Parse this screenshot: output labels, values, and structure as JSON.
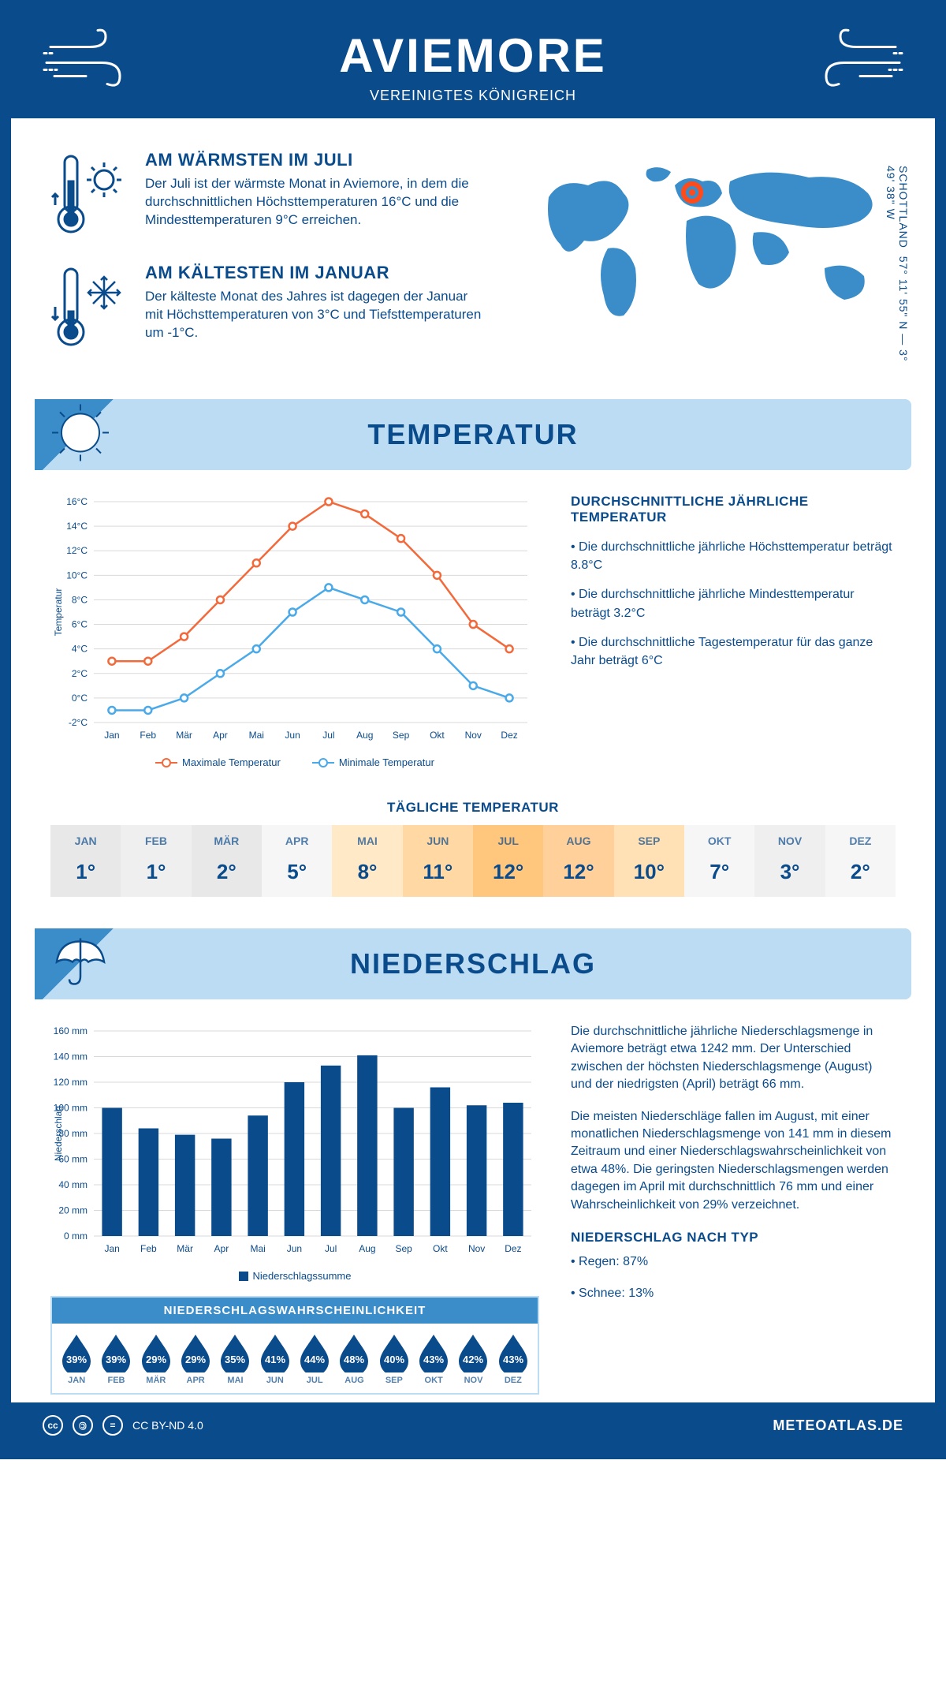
{
  "colors": {
    "primary": "#0a4b8c",
    "light_blue": "#bcdcf4",
    "mid_blue": "#3a8dc9",
    "orange_line": "#f26a3b",
    "blue_line": "#4aa9e8",
    "grid": "#d9d9d9"
  },
  "header": {
    "title": "AVIEMORE",
    "subtitle": "VEREINIGTES KÖNIGREICH"
  },
  "intro": {
    "warm": {
      "title": "AM WÄRMSTEN IM JULI",
      "text": "Der Juli ist der wärmste Monat in Aviemore, in dem die durchschnittlichen Höchsttemperaturen 16°C und die Mindesttemperaturen 9°C erreichen."
    },
    "cold": {
      "title": "AM KÄLTESTEN IM JANUAR",
      "text": "Der kälteste Monat des Jahres ist dagegen der Januar mit Höchsttemperaturen von 3°C und Tiefsttemperaturen um -1°C."
    },
    "coords": "57° 11' 55\" N — 3° 49' 38\" W",
    "region": "SCHOTTLAND"
  },
  "sections": {
    "temperature": "TEMPERATUR",
    "precipitation": "NIEDERSCHLAG"
  },
  "months": [
    "Jan",
    "Feb",
    "Mär",
    "Apr",
    "Mai",
    "Jun",
    "Jul",
    "Aug",
    "Sep",
    "Okt",
    "Nov",
    "Dez"
  ],
  "temp_chart": {
    "ylabel": "Temperatur",
    "ymin": -2,
    "ymax": 16,
    "ystep": 2,
    "max_series": [
      3,
      3,
      5,
      8,
      11,
      14,
      16,
      15,
      13,
      10,
      6,
      4
    ],
    "min_series": [
      -1,
      -1,
      0,
      2,
      4,
      7,
      9,
      8,
      7,
      4,
      1,
      0
    ],
    "legend_max": "Maximale Temperatur",
    "legend_min": "Minimale Temperatur",
    "title_fontsize": 13,
    "label_fontsize": 12,
    "background_color": "#ffffff",
    "grid_color": "#d9d9d9"
  },
  "temp_stats": {
    "title": "DURCHSCHNITTLICHE JÄHRLICHE TEMPERATUR",
    "lines": [
      "• Die durchschnittliche jährliche Höchsttemperatur beträgt 8.8°C",
      "• Die durchschnittliche jährliche Mindesttemperatur beträgt 3.2°C",
      "• Die durchschnittliche Tagestemperatur für das ganze Jahr beträgt 6°C"
    ]
  },
  "daily_temp": {
    "title": "TÄGLICHE TEMPERATUR",
    "months_short": [
      "JAN",
      "FEB",
      "MÄR",
      "APR",
      "MAI",
      "JUN",
      "JUL",
      "AUG",
      "SEP",
      "OKT",
      "NOV",
      "DEZ"
    ],
    "values": [
      "1°",
      "1°",
      "2°",
      "5°",
      "8°",
      "11°",
      "12°",
      "12°",
      "10°",
      "7°",
      "3°",
      "2°"
    ],
    "bg_colors": [
      "#e8e8e8",
      "#efefef",
      "#e8e8e8",
      "#f6f6f6",
      "#ffe9c7",
      "#ffd8a3",
      "#ffc67e",
      "#ffd09a",
      "#ffe1b5",
      "#f6f6f6",
      "#efefef",
      "#f6f6f6"
    ]
  },
  "precip_chart": {
    "ylabel": "Niederschlag",
    "ymin": 0,
    "ymax": 160,
    "ystep": 20,
    "values": [
      100,
      84,
      79,
      76,
      94,
      120,
      133,
      141,
      100,
      116,
      102,
      104
    ],
    "bar_color": "#0a4b8c",
    "legend": "Niederschlagssumme",
    "grid_color": "#d9d9d9",
    "bar_width": 0.55
  },
  "precip_text": {
    "p1": "Die durchschnittliche jährliche Niederschlagsmenge in Aviemore beträgt etwa 1242 mm. Der Unterschied zwischen der höchsten Niederschlagsmenge (August) und der niedrigsten (April) beträgt 66 mm.",
    "p2": "Die meisten Niederschläge fallen im August, mit einer monatlichen Niederschlagsmenge von 141 mm in diesem Zeitraum und einer Niederschlagswahrscheinlichkeit von etwa 48%. Die geringsten Niederschlagsmengen werden dagegen im April mit durchschnittlich 76 mm und einer Wahrscheinlichkeit von 29% verzeichnet.",
    "type_title": "NIEDERSCHLAG NACH TYP",
    "type_lines": [
      "• Regen: 87%",
      "• Schnee: 13%"
    ]
  },
  "precip_prob": {
    "title": "NIEDERSCHLAGSWAHRSCHEINLICHKEIT",
    "values": [
      "39%",
      "39%",
      "29%",
      "29%",
      "35%",
      "41%",
      "44%",
      "48%",
      "40%",
      "43%",
      "42%",
      "43%"
    ],
    "months": [
      "JAN",
      "FEB",
      "MÄR",
      "APR",
      "MAI",
      "JUN",
      "JUL",
      "AUG",
      "SEP",
      "OKT",
      "NOV",
      "DEZ"
    ],
    "drop_color": "#0a4b8c"
  },
  "footer": {
    "license": "CC BY-ND 4.0",
    "site": "METEOATLAS.DE"
  }
}
